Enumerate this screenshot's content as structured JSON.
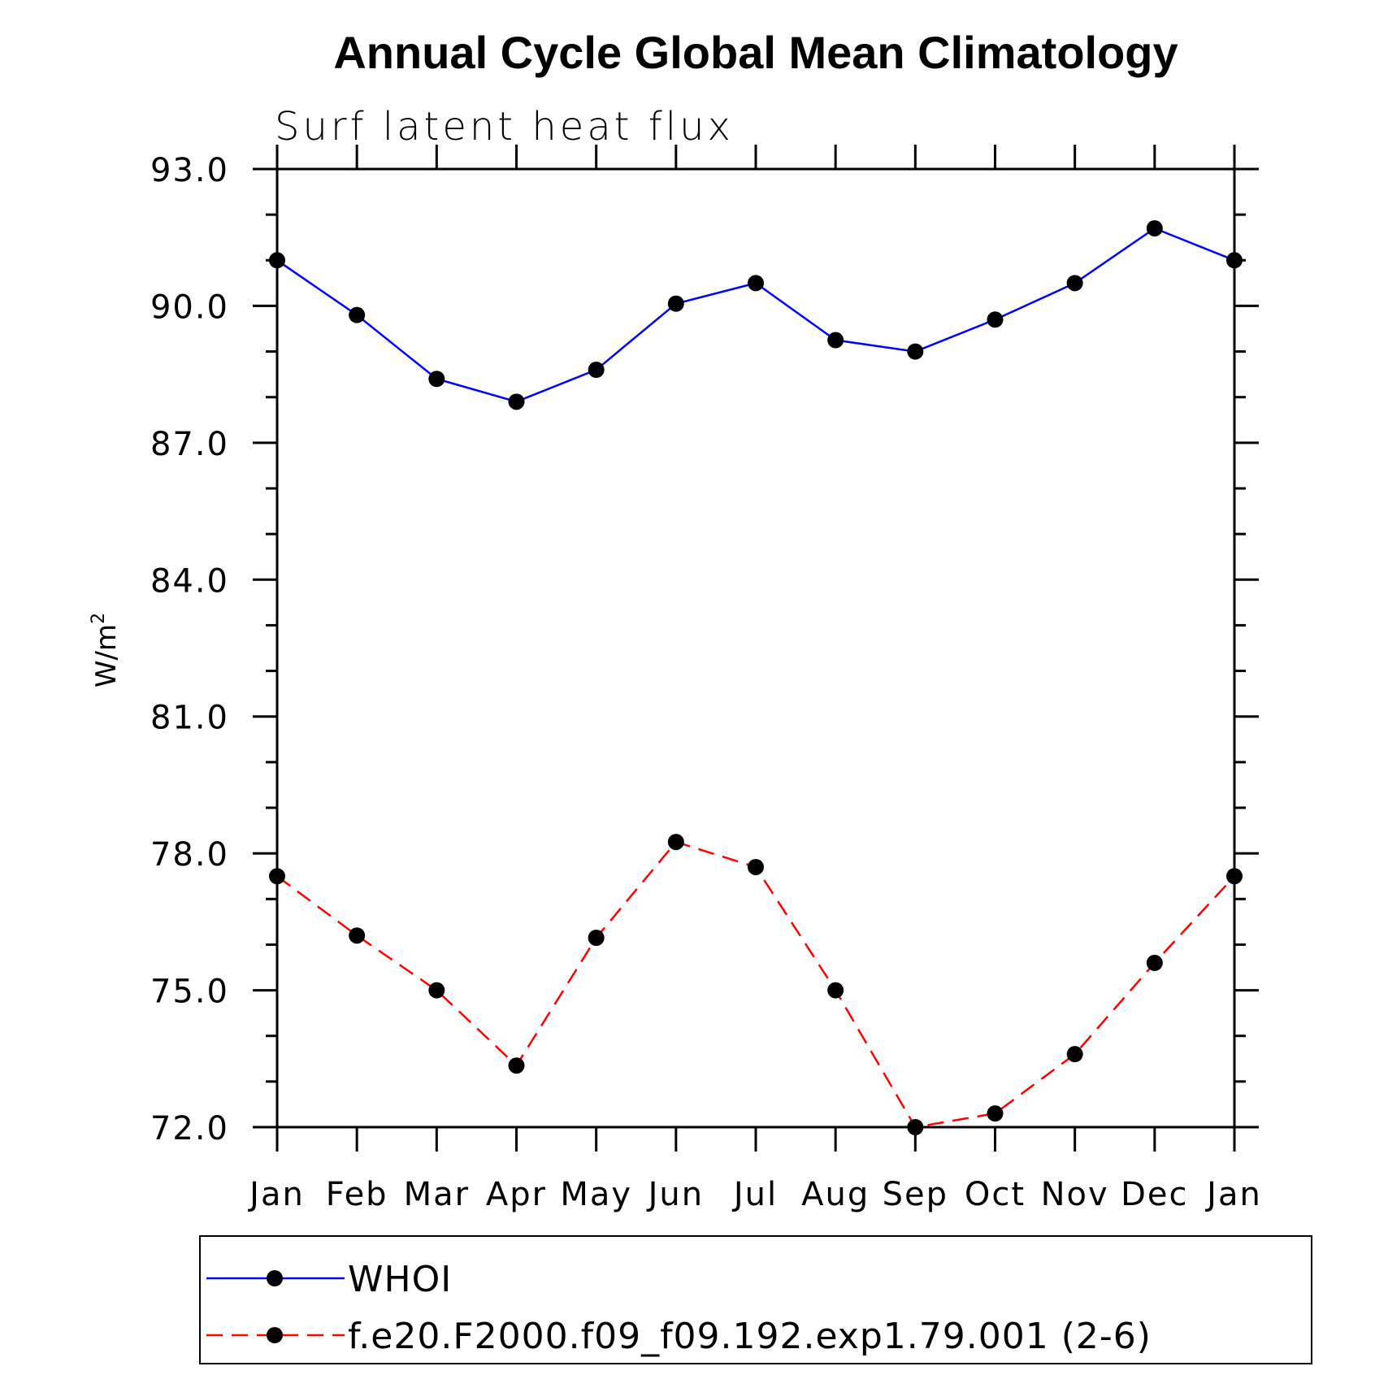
{
  "chart_data": {
    "type": "line",
    "title": "Annual Cycle Global Mean Climatology",
    "subtitle": "Surf latent heat flux",
    "ylabel": "W/m",
    "ylabel_superscript": "2",
    "xlabel": "",
    "categories": [
      "Jan",
      "Feb",
      "Mar",
      "Apr",
      "May",
      "Jun",
      "Jul",
      "Aug",
      "Sep",
      "Oct",
      "Nov",
      "Dec",
      "Jan"
    ],
    "ylim": [
      72.0,
      93.0
    ],
    "yticks": [
      "72.0",
      "75.0",
      "78.0",
      "81.0",
      "84.0",
      "87.0",
      "90.0",
      "93.0"
    ],
    "yminor_step": 1.0,
    "legend_position": "bottom",
    "series": [
      {
        "name": "WHOI",
        "color": "#0000ff",
        "dash": "solid",
        "values": [
          91.0,
          89.8,
          88.4,
          87.9,
          88.6,
          90.05,
          90.5,
          89.25,
          89.0,
          89.7,
          90.5,
          91.7,
          91.0
        ]
      },
      {
        "name": "f.e20.F2000.f09_f09.192.exp1.79.001 (2-6)",
        "color": "#ff0000",
        "dash": "dashed",
        "values": [
          77.5,
          76.2,
          75.0,
          73.35,
          76.15,
          78.25,
          77.7,
          75.0,
          72.0,
          72.3,
          73.6,
          75.6,
          77.5
        ]
      }
    ]
  }
}
